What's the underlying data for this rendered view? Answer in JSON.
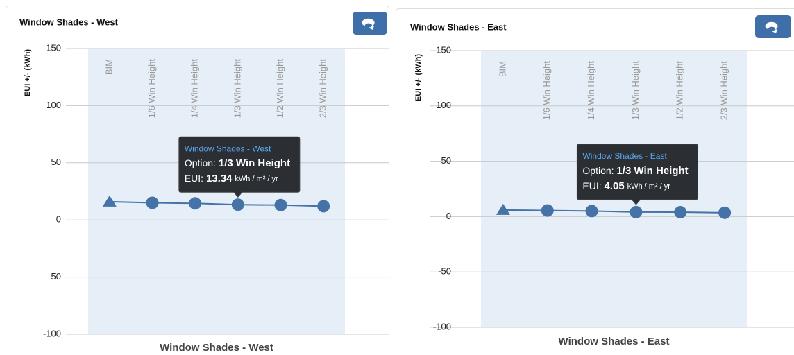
{
  "chart_data": [
    {
      "type": "line",
      "title": "Window Shades - West",
      "y_label": "EUI +/- (kWh)",
      "x_label": "Window Shades - West",
      "categories": [
        "BIM",
        "1/6 Win Height",
        "1/4 Win Height",
        "1/3 Win Height",
        "1/2 Win Height",
        "2/3 Win Height"
      ],
      "series": [
        {
          "name": "Window Shades - West",
          "color": "#4572a7",
          "values": [
            16,
            15,
            14.5,
            13.34,
            13,
            12
          ],
          "markers": [
            "triangle",
            "circle",
            "circle",
            "circle",
            "circle",
            "circle"
          ]
        }
      ],
      "ylim": [
        -100,
        150
      ],
      "yticks": [
        -100,
        -50,
        0,
        50,
        100,
        150
      ],
      "grid": true,
      "tooltip": {
        "index": 3,
        "option_label": "Option:",
        "eui_label": "EUI:",
        "unit": "kWh / m² / yr"
      }
    },
    {
      "type": "line",
      "title": "Window Shades - East",
      "y_label": "EUI +/- (kWh)",
      "x_label": "Window Shades - East",
      "categories": [
        "BIM",
        "1/6 Win Height",
        "1/4 Win Height",
        "1/3 Win Height",
        "1/2 Win Height",
        "2/3 Win Height"
      ],
      "series": [
        {
          "name": "Window Shades - East",
          "color": "#4572a7",
          "values": [
            6,
            5.5,
            5,
            4.05,
            4,
            3.5
          ],
          "markers": [
            "triangle",
            "circle",
            "circle",
            "circle",
            "circle",
            "circle"
          ]
        }
      ],
      "ylim": [
        -100,
        150
      ],
      "yticks": [
        -100,
        -50,
        0,
        50,
        100,
        150
      ],
      "grid": true,
      "tooltip": {
        "index": 3,
        "option_label": "Option:",
        "eui_label": "EUI:",
        "unit": "kWh / m² / yr"
      }
    }
  ]
}
